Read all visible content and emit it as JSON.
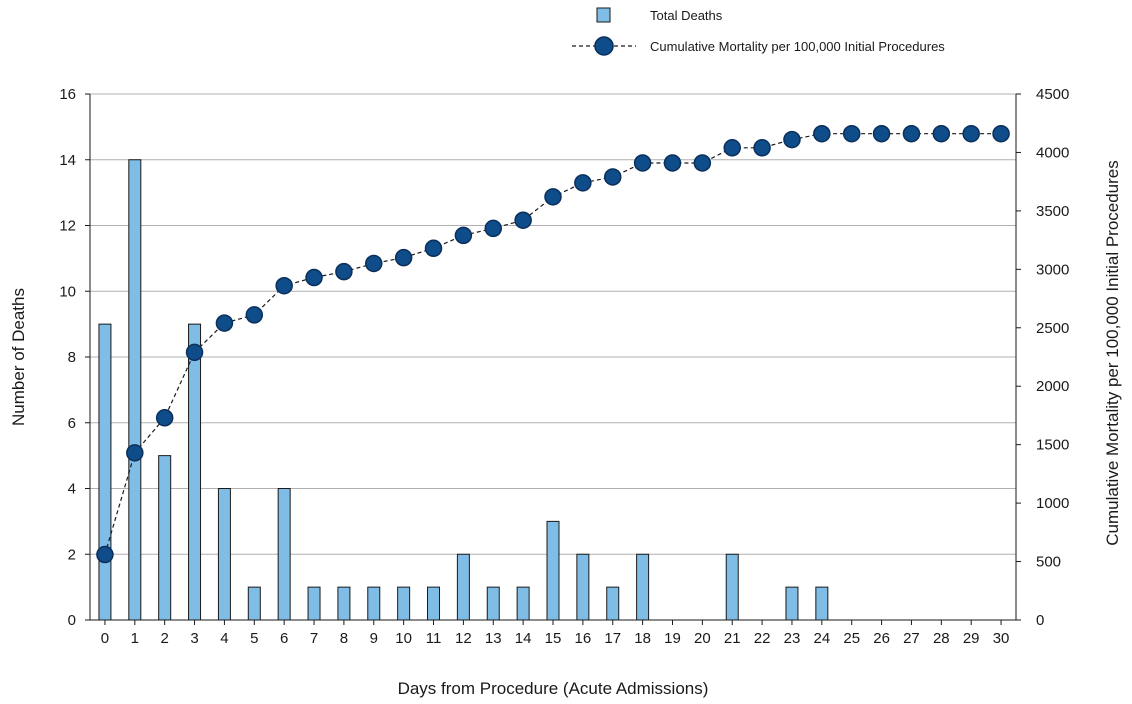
{
  "chart_data": {
    "type": "bar",
    "categories": [
      "0",
      "1",
      "2",
      "3",
      "4",
      "5",
      "6",
      "7",
      "8",
      "9",
      "10",
      "11",
      "12",
      "13",
      "14",
      "15",
      "16",
      "17",
      "18",
      "19",
      "20",
      "21",
      "22",
      "23",
      "24",
      "25",
      "26",
      "27",
      "28",
      "29",
      "30"
    ],
    "series": [
      {
        "name": "Total Deaths",
        "type": "bar",
        "axis": "left",
        "values": [
          9,
          14,
          5,
          9,
          4,
          1,
          4,
          1,
          1,
          1,
          1,
          1,
          2,
          1,
          1,
          3,
          2,
          1,
          2,
          0,
          0,
          2,
          0,
          1,
          1,
          0,
          0,
          0,
          0,
          0,
          0
        ]
      },
      {
        "name": "Cumulative Mortality per 100,000 Initial Procedures",
        "type": "line",
        "axis": "right",
        "values": [
          560,
          1430,
          1730,
          2290,
          2540,
          2610,
          2860,
          2930,
          2980,
          3050,
          3100,
          3180,
          3290,
          3350,
          3420,
          3620,
          3740,
          3790,
          3910,
          3910,
          3910,
          4040,
          4040,
          4110,
          4160,
          4160,
          4160,
          4160,
          4160,
          4160,
          4160
        ]
      }
    ],
    "xlabel": "Days from Procedure (Acute Admissions)",
    "ylabel": "Number of Deaths",
    "y2label": "Cumulative Mortality per 100,000 Initial Procedures",
    "ylim": [
      0,
      16
    ],
    "yticks": [
      "0",
      "2",
      "4",
      "6",
      "8",
      "10",
      "12",
      "14",
      "16"
    ],
    "y2lim": [
      0,
      4500
    ],
    "y2ticks": [
      "0",
      "500",
      "1000",
      "1500",
      "2000",
      "2500",
      "3000",
      "3500",
      "4000",
      "4500"
    ],
    "grid": true,
    "legend_position": "top-right",
    "colors": {
      "bar_fill": "#7fbde6",
      "bar_stroke": "#1a1a1a",
      "marker_fill": "#0f4c8a",
      "marker_stroke": "#0a2f5a",
      "line": "#1a1a1a",
      "grid": "#b0b0b0"
    }
  }
}
